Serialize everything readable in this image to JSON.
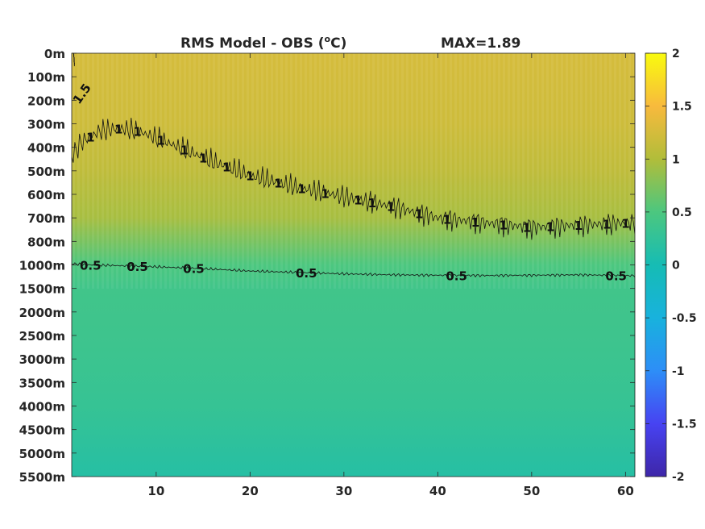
{
  "chart_data": {
    "type": "heatmap",
    "title_main": "RMS Model - OBS (",
    "title_sup": "o",
    "title_unit": "C)",
    "title_max": "MAX=1.89",
    "x_ticks": [
      10,
      20,
      30,
      40,
      50,
      60
    ],
    "x_range": [
      1,
      61
    ],
    "y_ticks": [
      "0m",
      "100m",
      "200m",
      "300m",
      "400m",
      "500m",
      "600m",
      "700m",
      "800m",
      "1000m",
      "1500m",
      "2000m",
      "2500m",
      "3000m",
      "3500m",
      "4000m",
      "4500m",
      "5000m",
      "5500m"
    ],
    "depths": [
      0,
      100,
      200,
      300,
      400,
      500,
      600,
      700,
      800,
      1000,
      1500,
      2000,
      2500,
      3000,
      3500,
      4000,
      4500,
      5000,
      5500
    ],
    "colorbar_ticks": [
      "2",
      "1.5",
      "1",
      "0.5",
      "0",
      "-0.5",
      "-1",
      "-1.5",
      "-2"
    ],
    "colorbar_values": [
      2,
      1.5,
      1,
      0.5,
      0,
      -0.5,
      -1,
      -1.5,
      -2
    ],
    "clim": [
      -2,
      2
    ],
    "colormap": "parula",
    "contours": [
      {
        "level_label": "1.5",
        "x": [
          1.2,
          1.5,
          1.3
        ],
        "depth": [
          0,
          150,
          300
        ]
      },
      {
        "level_label": "1",
        "x": [
          1,
          2,
          4,
          6,
          8,
          10,
          13,
          16,
          20,
          25,
          30,
          35,
          40,
          45,
          50,
          55,
          61
        ],
        "depth": [
          440,
          380,
          330,
          320,
          330,
          360,
          410,
          460,
          520,
          570,
          610,
          650,
          700,
          720,
          740,
          730,
          720
        ],
        "labels_at_x": [
          3,
          6,
          8,
          10.5,
          13,
          15,
          17.5,
          20,
          23,
          25.5,
          28,
          31.5,
          33,
          35,
          38,
          41,
          44,
          47,
          49.5,
          52,
          55,
          58,
          60
        ]
      },
      {
        "level_label": "0.5",
        "x": [
          1,
          5,
          10,
          15,
          20,
          25,
          30,
          35,
          40,
          45,
          50,
          55,
          61
        ],
        "depth": [
          990,
          1010,
          1040,
          1080,
          1130,
          1160,
          1190,
          1210,
          1220,
          1225,
          1220,
          1210,
          1230
        ],
        "labels_at_x": [
          3,
          8,
          14,
          26,
          42,
          59
        ]
      }
    ],
    "field_depth_values": [
      {
        "depth": 0,
        "value": 1.25
      },
      {
        "depth": 300,
        "value": 1.2
      },
      {
        "depth": 500,
        "value": 1.1
      },
      {
        "depth": 700,
        "value": 0.95
      },
      {
        "depth": 1000,
        "value": 0.5
      },
      {
        "depth": 1500,
        "value": 0.4
      },
      {
        "depth": 2500,
        "value": 0.37
      },
      {
        "depth": 4000,
        "value": 0.3
      },
      {
        "depth": 5500,
        "value": 0.15
      }
    ]
  }
}
